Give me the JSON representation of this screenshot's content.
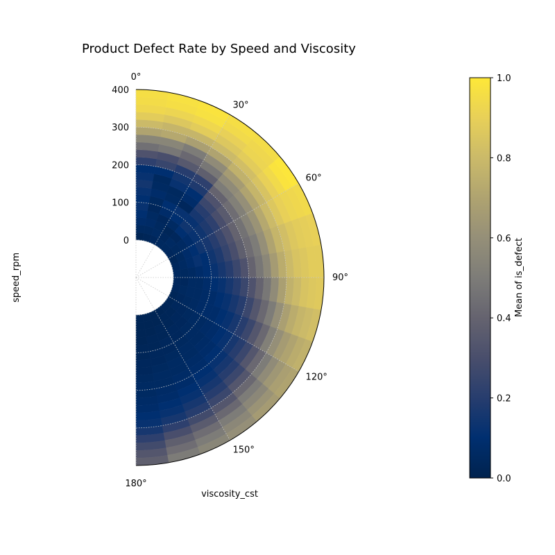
{
  "chart_data": {
    "type": "heatmap",
    "projection": "polar-half",
    "title": "Product Defect Rate by Speed and Viscosity",
    "xlabel": "viscosity_cst",
    "ylabel": "speed_rpm",
    "theta_range_deg": [
      0,
      180
    ],
    "theta_tick_labels": [
      "0°",
      "30°",
      "60°",
      "90°",
      "120°",
      "150°",
      "180°"
    ],
    "theta_tick_values": [
      0,
      30,
      60,
      90,
      120,
      150,
      180
    ],
    "r_range": [
      -100,
      400
    ],
    "r_tick_labels": [
      "0",
      "100",
      "200",
      "300",
      "400"
    ],
    "r_tick_values": [
      0,
      100,
      200,
      300,
      400
    ],
    "grid": true,
    "colormap": "cividis",
    "colorbar": {
      "label": "Mean of is_defect",
      "range": [
        0,
        1
      ],
      "tick_labels": [
        "0.0",
        "0.2",
        "0.4",
        "0.6",
        "0.8",
        "1.0"
      ],
      "tick_values": [
        0,
        0.2,
        0.4,
        0.6,
        0.8,
        1.0
      ]
    },
    "r_bins": [
      -100,
      -80,
      -60,
      -40,
      -20,
      0,
      20,
      40,
      60,
      80,
      100,
      120,
      140,
      160,
      180,
      200,
      220,
      240,
      260,
      280,
      300,
      320,
      340,
      360,
      380,
      400
    ],
    "theta_bin_width_deg": 10,
    "values": [
      [
        0.0,
        0.0,
        0.0,
        0.0,
        0.0,
        0.02,
        0.05,
        0.08,
        0.1,
        0.12,
        0.1,
        0.12,
        0.15,
        0.12,
        0.1,
        0.22,
        0.32,
        0.45,
        0.55,
        0.7,
        0.8,
        0.88,
        0.93,
        0.95,
        0.96
      ],
      [
        0.0,
        0.0,
        0.0,
        0.0,
        0.0,
        0.03,
        0.05,
        0.07,
        0.06,
        0.04,
        0.05,
        0.08,
        0.06,
        0.05,
        0.1,
        0.25,
        0.3,
        0.48,
        0.55,
        0.72,
        0.78,
        0.86,
        0.92,
        0.96,
        0.97
      ],
      [
        0.0,
        0.0,
        0.0,
        0.0,
        0.0,
        0.04,
        0.06,
        0.05,
        0.04,
        0.08,
        0.1,
        0.06,
        0.05,
        0.12,
        0.15,
        0.2,
        0.35,
        0.42,
        0.5,
        0.68,
        0.78,
        0.88,
        0.93,
        0.97,
        0.98
      ],
      [
        0.0,
        0.0,
        0.0,
        0.0,
        0.0,
        0.05,
        0.04,
        0.03,
        0.06,
        0.1,
        0.12,
        0.04,
        0.08,
        0.1,
        0.18,
        0.22,
        0.38,
        0.48,
        0.58,
        0.7,
        0.8,
        0.86,
        0.9,
        0.94,
        0.96
      ],
      [
        0.0,
        0.0,
        0.0,
        0.0,
        0.0,
        0.05,
        0.06,
        0.04,
        0.1,
        0.14,
        0.12,
        0.16,
        0.2,
        0.26,
        0.32,
        0.4,
        0.5,
        0.58,
        0.66,
        0.76,
        0.82,
        0.88,
        0.92,
        0.93,
        0.95
      ],
      [
        0.0,
        0.0,
        0.0,
        0.0,
        0.0,
        0.04,
        0.05,
        0.06,
        0.08,
        0.12,
        0.14,
        0.18,
        0.22,
        0.3,
        0.36,
        0.44,
        0.52,
        0.6,
        0.7,
        0.78,
        0.84,
        0.9,
        0.94,
        0.98,
        0.99
      ],
      [
        0.0,
        0.0,
        0.0,
        0.0,
        0.0,
        0.03,
        0.05,
        0.08,
        0.1,
        0.14,
        0.16,
        0.2,
        0.26,
        0.32,
        0.4,
        0.46,
        0.54,
        0.62,
        0.72,
        0.8,
        0.86,
        0.9,
        0.92,
        0.93,
        0.94
      ],
      [
        0.0,
        0.0,
        0.0,
        0.0,
        0.0,
        0.04,
        0.06,
        0.08,
        0.12,
        0.1,
        0.14,
        0.18,
        0.24,
        0.3,
        0.38,
        0.44,
        0.5,
        0.6,
        0.7,
        0.78,
        0.82,
        0.86,
        0.88,
        0.89,
        0.9
      ],
      [
        0.0,
        0.0,
        0.0,
        0.0,
        0.0,
        0.05,
        0.05,
        0.06,
        0.08,
        0.1,
        0.12,
        0.16,
        0.2,
        0.26,
        0.32,
        0.4,
        0.48,
        0.56,
        0.66,
        0.74,
        0.8,
        0.84,
        0.86,
        0.88,
        0.88
      ],
      [
        0.0,
        0.0,
        0.0,
        0.0,
        0.0,
        0.04,
        0.04,
        0.06,
        0.06,
        0.08,
        0.1,
        0.12,
        0.16,
        0.2,
        0.26,
        0.32,
        0.4,
        0.48,
        0.58,
        0.68,
        0.76,
        0.8,
        0.84,
        0.86,
        0.87
      ],
      [
        0.0,
        0.0,
        0.0,
        0.0,
        0.0,
        0.04,
        0.05,
        0.06,
        0.06,
        0.07,
        0.08,
        0.1,
        0.12,
        0.16,
        0.2,
        0.26,
        0.34,
        0.42,
        0.5,
        0.6,
        0.68,
        0.74,
        0.78,
        0.8,
        0.82
      ],
      [
        0.0,
        0.0,
        0.0,
        0.0,
        0.0,
        0.03,
        0.04,
        0.05,
        0.06,
        0.07,
        0.08,
        0.08,
        0.1,
        0.12,
        0.16,
        0.2,
        0.26,
        0.34,
        0.42,
        0.52,
        0.6,
        0.66,
        0.7,
        0.74,
        0.76
      ],
      [
        0.0,
        0.0,
        0.0,
        0.0,
        0.0,
        0.03,
        0.04,
        0.04,
        0.05,
        0.06,
        0.06,
        0.07,
        0.08,
        0.1,
        0.12,
        0.16,
        0.2,
        0.26,
        0.34,
        0.42,
        0.5,
        0.58,
        0.64,
        0.68,
        0.7
      ],
      [
        0.0,
        0.0,
        0.0,
        0.0,
        0.0,
        0.03,
        0.03,
        0.04,
        0.04,
        0.05,
        0.06,
        0.06,
        0.07,
        0.08,
        0.1,
        0.12,
        0.16,
        0.2,
        0.26,
        0.34,
        0.42,
        0.5,
        0.56,
        0.62,
        0.66
      ],
      [
        0.0,
        0.0,
        0.0,
        0.0,
        0.0,
        0.02,
        0.03,
        0.03,
        0.04,
        0.04,
        0.05,
        0.06,
        0.06,
        0.07,
        0.08,
        0.1,
        0.12,
        0.16,
        0.2,
        0.26,
        0.34,
        0.42,
        0.5,
        0.56,
        0.6
      ],
      [
        0.0,
        0.0,
        0.0,
        0.0,
        0.0,
        0.02,
        0.02,
        0.03,
        0.03,
        0.04,
        0.04,
        0.05,
        0.06,
        0.06,
        0.07,
        0.08,
        0.1,
        0.12,
        0.16,
        0.2,
        0.28,
        0.36,
        0.44,
        0.5,
        0.55
      ],
      [
        0.0,
        0.0,
        0.0,
        0.0,
        0.0,
        0.02,
        0.02,
        0.02,
        0.03,
        0.03,
        0.04,
        0.04,
        0.05,
        0.06,
        0.06,
        0.07,
        0.08,
        0.1,
        0.12,
        0.16,
        0.22,
        0.3,
        0.38,
        0.44,
        0.5
      ],
      [
        0.0,
        0.0,
        0.0,
        0.0,
        0.0,
        0.02,
        0.02,
        0.02,
        0.02,
        0.03,
        0.03,
        0.04,
        0.04,
        0.05,
        0.06,
        0.06,
        0.07,
        0.08,
        0.1,
        0.12,
        0.16,
        0.22,
        0.28,
        0.34,
        0.38
      ]
    ]
  }
}
